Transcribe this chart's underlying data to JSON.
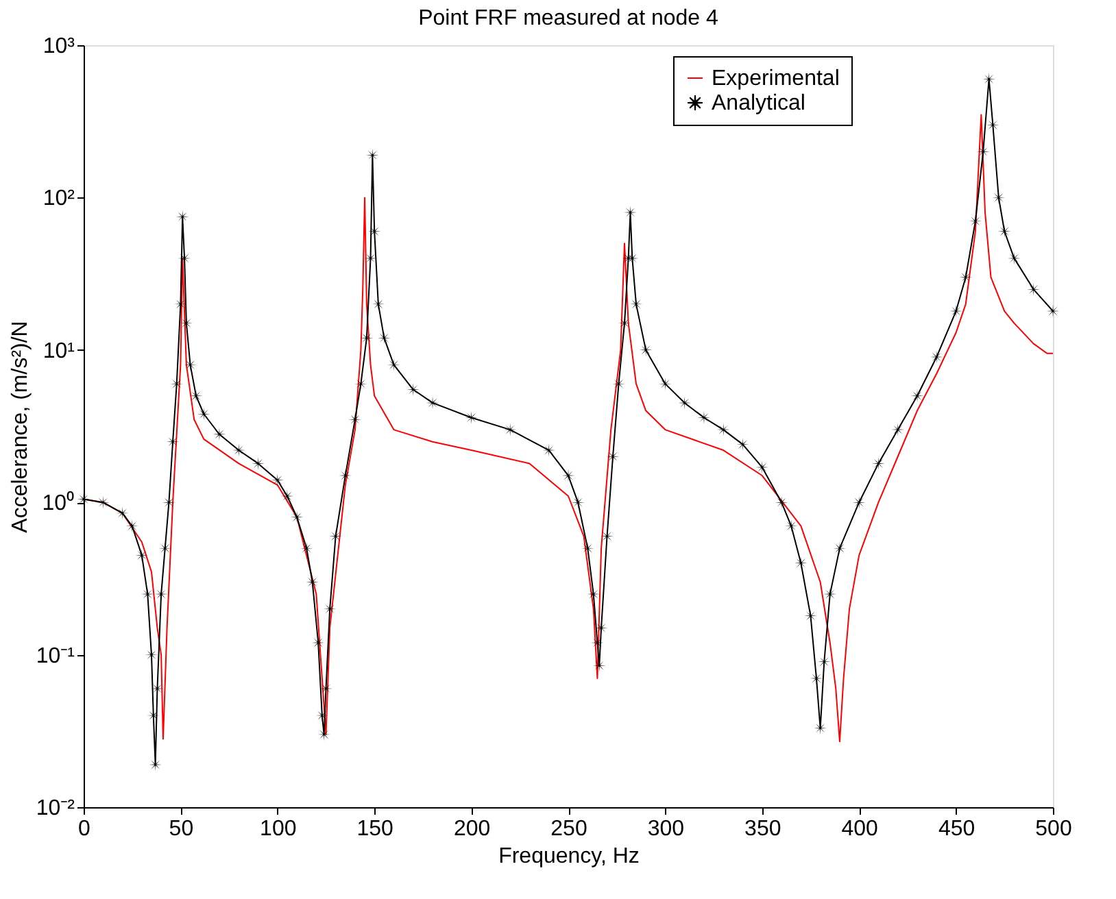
{
  "chart_data": {
    "type": "line",
    "title": "Point FRF measured at node 4",
    "xlabel": "Frequency, Hz",
    "ylabel": "Accelerance, (m/s²)/N",
    "log": "y",
    "grid": false,
    "legend": "top right",
    "line_style": "solid",
    "xlim": [
      0,
      500
    ],
    "xticks": [
      0,
      50,
      100,
      150,
      200,
      250,
      300,
      350,
      400,
      450,
      500
    ],
    "ylim": [
      0.01,
      1000
    ],
    "yticks": [
      {
        "value": 0.01,
        "label": "10⁻²"
      },
      {
        "value": 0.1,
        "label": "10⁻¹"
      },
      {
        "value": 1,
        "label": "10⁰"
      },
      {
        "value": 10,
        "label": "10¹"
      },
      {
        "value": 100,
        "label": "10²"
      },
      {
        "value": 1000,
        "label": "10³"
      }
    ],
    "series": [
      {
        "name": "Experimental",
        "color": "#ff0000",
        "marker": "none",
        "x": [
          0,
          10,
          20,
          30,
          35,
          38,
          40,
          41,
          43,
          46,
          50,
          51,
          53,
          57,
          62,
          80,
          100,
          110,
          120,
          125,
          127,
          135,
          140,
          143,
          144,
          145,
          146,
          148,
          150,
          160,
          180,
          200,
          230,
          250,
          258,
          263,
          265,
          267,
          272,
          277,
          279,
          281,
          285,
          290,
          300,
          330,
          350,
          370,
          380,
          385,
          388,
          390,
          392,
          395,
          400,
          410,
          420,
          430,
          440,
          450,
          455,
          460,
          463,
          465,
          468,
          475,
          480,
          490,
          497,
          500
        ],
        "values": [
          1.05,
          1.0,
          0.85,
          0.55,
          0.35,
          0.15,
          0.1,
          0.028,
          0.15,
          1,
          8,
          40,
          8,
          3.5,
          2.6,
          1.8,
          1.3,
          0.8,
          0.25,
          0.03,
          0.15,
          1.3,
          3,
          10,
          25,
          100,
          20,
          8,
          5,
          3,
          2.5,
          2.2,
          1.8,
          1.1,
          0.6,
          0.2,
          0.07,
          0.5,
          3,
          10,
          50,
          15,
          6,
          4,
          3,
          2.2,
          1.5,
          0.7,
          0.3,
          0.12,
          0.06,
          0.027,
          0.07,
          0.2,
          0.45,
          1,
          2,
          4,
          7,
          13,
          20,
          60,
          350,
          80,
          30,
          18,
          15,
          11,
          9.5,
          9.5
        ]
      },
      {
        "name": "Analytical",
        "color": "#000000",
        "marker": "star",
        "x": [
          0,
          10,
          20,
          25,
          30,
          33,
          35,
          36,
          37,
          38,
          40,
          42,
          44,
          46,
          48,
          50,
          51,
          52,
          53,
          55,
          58,
          62,
          70,
          80,
          90,
          100,
          105,
          110,
          115,
          118,
          121,
          123,
          124,
          125,
          127,
          130,
          135,
          140,
          143,
          146,
          148,
          149,
          150,
          152,
          155,
          160,
          170,
          180,
          200,
          220,
          240,
          250,
          255,
          260,
          263,
          265,
          266,
          267,
          270,
          273,
          276,
          279,
          281,
          282,
          283,
          285,
          290,
          300,
          310,
          320,
          330,
          340,
          350,
          360,
          365,
          370,
          375,
          378,
          380,
          382,
          385,
          390,
          400,
          410,
          420,
          430,
          440,
          450,
          455,
          460,
          464,
          467,
          469,
          472,
          475,
          480,
          490,
          500
        ],
        "values": [
          1.05,
          1.0,
          0.85,
          0.7,
          0.45,
          0.25,
          0.1,
          0.04,
          0.019,
          0.06,
          0.25,
          0.5,
          1.0,
          2.5,
          6,
          20,
          75,
          40,
          15,
          8,
          5,
          3.8,
          2.8,
          2.2,
          1.8,
          1.4,
          1.1,
          0.8,
          0.5,
          0.3,
          0.12,
          0.04,
          0.03,
          0.06,
          0.2,
          0.6,
          1.5,
          3.5,
          6,
          12,
          40,
          190,
          60,
          20,
          12,
          8,
          5.5,
          4.5,
          3.6,
          3.0,
          2.2,
          1.5,
          1.0,
          0.5,
          0.25,
          0.12,
          0.085,
          0.15,
          0.6,
          2,
          6,
          15,
          40,
          80,
          40,
          20,
          10,
          6,
          4.5,
          3.6,
          3.0,
          2.4,
          1.7,
          1.0,
          0.7,
          0.4,
          0.18,
          0.07,
          0.033,
          0.09,
          0.25,
          0.5,
          1.0,
          1.8,
          3,
          5,
          9,
          18,
          30,
          70,
          200,
          600,
          300,
          100,
          60,
          40,
          25,
          18
        ]
      }
    ]
  }
}
